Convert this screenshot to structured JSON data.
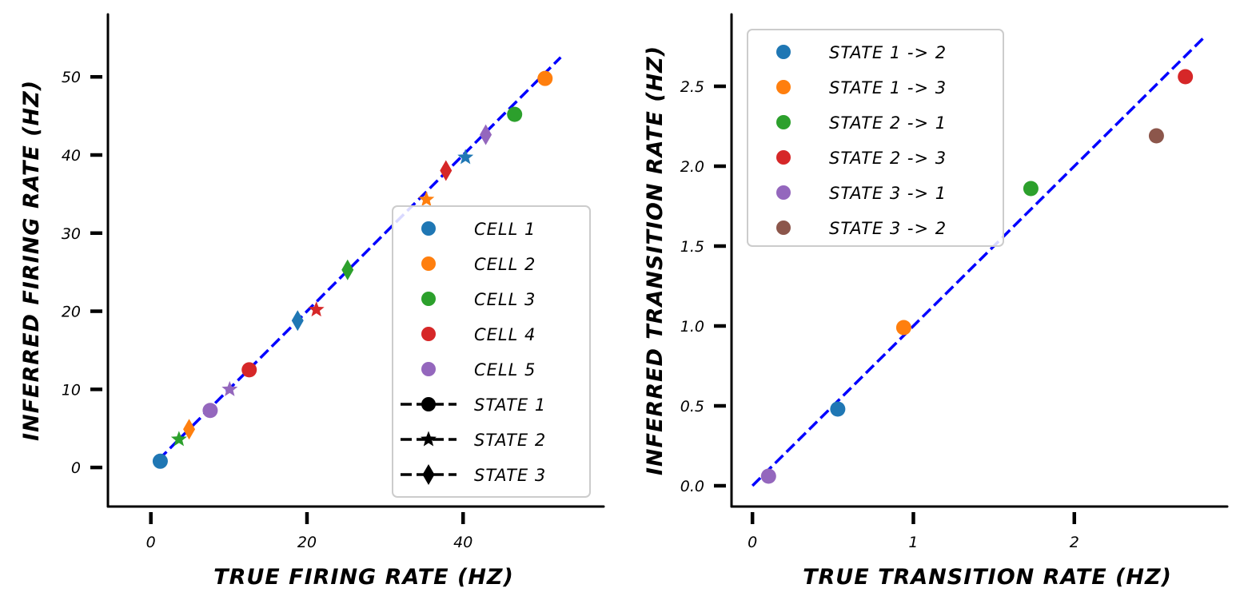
{
  "chart_data": [
    {
      "type": "scatter",
      "xlabel": "TRUE FIRING RATE (HZ)",
      "ylabel": "INFERRED FIRING RATE (HZ)",
      "xlim": [
        -5.5,
        58
      ],
      "ylim": [
        -5,
        58
      ],
      "xticks": [
        0,
        20,
        40
      ],
      "yticks": [
        0,
        10,
        20,
        30,
        40,
        50
      ],
      "xtick_labels": [
        "0",
        "20",
        "40"
      ],
      "ytick_labels": [
        "0",
        "10",
        "20",
        "30",
        "40",
        "50"
      ],
      "reference_line": {
        "x": [
          1,
          52.5
        ],
        "y": [
          1,
          52.5
        ],
        "color": "#0000ff",
        "style": "dashed"
      },
      "legend_position": "lower right",
      "legend": [
        {
          "label": "CELL 1",
          "color": "#1f77b4",
          "marker": "circle"
        },
        {
          "label": "CELL 2",
          "color": "#ff7f0e",
          "marker": "circle"
        },
        {
          "label": "CELL 3",
          "color": "#2ca02c",
          "marker": "circle"
        },
        {
          "label": "CELL 4",
          "color": "#d62728",
          "marker": "circle"
        },
        {
          "label": "CELL 5",
          "color": "#9467bd",
          "marker": "circle"
        },
        {
          "label": "STATE 1",
          "color": "#000000",
          "marker": "circle"
        },
        {
          "label": "STATE 2",
          "color": "#000000",
          "marker": "star"
        },
        {
          "label": "STATE 3",
          "color": "#000000",
          "marker": "diamond"
        }
      ],
      "points": [
        {
          "x": 1.2,
          "y": 0.8,
          "color": "#1f77b4",
          "marker": "circle"
        },
        {
          "x": 4.9,
          "y": 4.9,
          "color": "#ff7f0e",
          "marker": "diamond"
        },
        {
          "x": 3.6,
          "y": 3.6,
          "color": "#2ca02c",
          "marker": "star"
        },
        {
          "x": 7.6,
          "y": 7.3,
          "color": "#9467bd",
          "marker": "circle"
        },
        {
          "x": 10.1,
          "y": 10.0,
          "color": "#9467bd",
          "marker": "star"
        },
        {
          "x": 12.6,
          "y": 12.5,
          "color": "#d62728",
          "marker": "circle"
        },
        {
          "x": 18.8,
          "y": 18.8,
          "color": "#1f77b4",
          "marker": "diamond"
        },
        {
          "x": 21.2,
          "y": 20.2,
          "color": "#d62728",
          "marker": "star"
        },
        {
          "x": 25.2,
          "y": 25.3,
          "color": "#2ca02c",
          "marker": "diamond"
        },
        {
          "x": 35.3,
          "y": 34.3,
          "color": "#ff7f0e",
          "marker": "star"
        },
        {
          "x": 37.8,
          "y": 38.0,
          "color": "#d62728",
          "marker": "diamond"
        },
        {
          "x": 40.3,
          "y": 39.7,
          "color": "#1f77b4",
          "marker": "star"
        },
        {
          "x": 42.9,
          "y": 42.6,
          "color": "#9467bd",
          "marker": "diamond"
        },
        {
          "x": 46.6,
          "y": 45.2,
          "color": "#2ca02c",
          "marker": "circle"
        },
        {
          "x": 50.5,
          "y": 49.8,
          "color": "#ff7f0e",
          "marker": "circle"
        }
      ]
    },
    {
      "type": "scatter",
      "xlabel": "TRUE TRANSITION RATE (HZ)",
      "ylabel": "INFERRED TRANSITION RATE (HZ)",
      "xlim": [
        -0.13,
        2.95
      ],
      "ylim": [
        -0.13,
        2.95
      ],
      "xticks": [
        0,
        1,
        2
      ],
      "yticks": [
        0.0,
        0.5,
        1.0,
        1.5,
        2.0,
        2.5
      ],
      "xtick_labels": [
        "0",
        "1",
        "2"
      ],
      "ytick_labels": [
        "0.0",
        "0.5",
        "1.0",
        "1.5",
        "2.0",
        "2.5"
      ],
      "reference_line": {
        "x": [
          0,
          2.8
        ],
        "y": [
          0,
          2.8
        ],
        "color": "#0000ff",
        "style": "dashed"
      },
      "legend_position": "upper left",
      "legend": [
        {
          "label": "STATE 1 -> 2",
          "color": "#1f77b4",
          "marker": "circle"
        },
        {
          "label": "STATE 1 -> 3",
          "color": "#ff7f0e",
          "marker": "circle"
        },
        {
          "label": "STATE 2 -> 1",
          "color": "#2ca02c",
          "marker": "circle"
        },
        {
          "label": "STATE 2 -> 3",
          "color": "#d62728",
          "marker": "circle"
        },
        {
          "label": "STATE 3 -> 1",
          "color": "#9467bd",
          "marker": "circle"
        },
        {
          "label": "STATE 3 -> 2",
          "color": "#8c564b",
          "marker": "circle"
        }
      ],
      "points": [
        {
          "x": 0.53,
          "y": 0.48,
          "color": "#1f77b4",
          "marker": "circle"
        },
        {
          "x": 0.94,
          "y": 0.99,
          "color": "#ff7f0e",
          "marker": "circle"
        },
        {
          "x": 1.73,
          "y": 1.86,
          "color": "#2ca02c",
          "marker": "circle"
        },
        {
          "x": 2.69,
          "y": 2.56,
          "color": "#d62728",
          "marker": "circle"
        },
        {
          "x": 0.1,
          "y": 0.06,
          "color": "#9467bd",
          "marker": "circle"
        },
        {
          "x": 2.51,
          "y": 2.19,
          "color": "#8c564b",
          "marker": "circle"
        }
      ]
    }
  ]
}
